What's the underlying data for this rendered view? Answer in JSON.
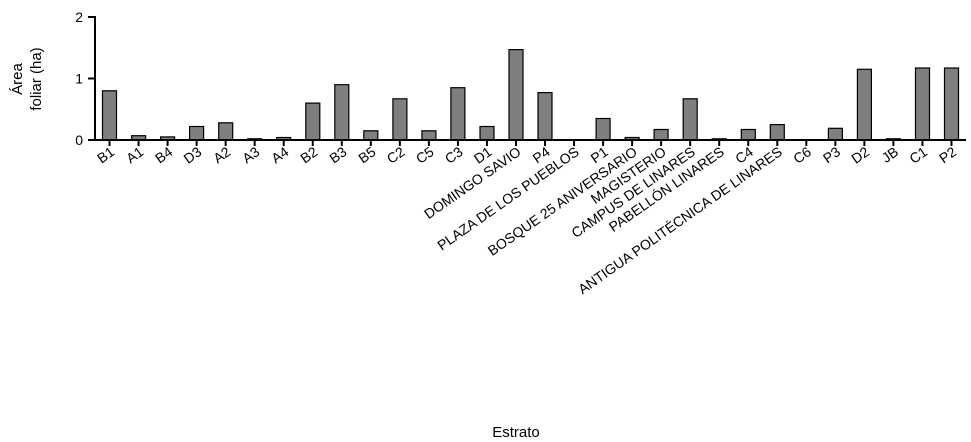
{
  "chart_data": {
    "type": "bar",
    "title": "",
    "xlabel": "Estrato",
    "ylabel_lines": [
      "Área",
      "foliar (ha)"
    ],
    "ylim": [
      0,
      2
    ],
    "yticks": [
      0,
      1,
      2
    ],
    "grid": false,
    "bar_color": "#7f7f7f",
    "categories": [
      "B1",
      "A1",
      "B4",
      "D3",
      "A2",
      "A3",
      "A4",
      "B2",
      "B3",
      "B5",
      "C2",
      "C5",
      "C3",
      "D1",
      "DOMINGO SAVIO",
      "P4",
      "PLAZA DE LOS PUEBLOS",
      "P1",
      "BOSQUE 25 ANIVERSARIO",
      "MAGISTERIO",
      "CAMPUS DE LINARES",
      "PABELLÓN LINARES",
      "C4",
      "ANTIGUA POLITÉCNICA DE LINARES",
      "C6",
      "P3",
      "D2",
      "JB",
      "C1",
      "P2"
    ],
    "values": [
      0.8,
      0.07,
      0.05,
      0.22,
      0.28,
      0.02,
      0.04,
      0.6,
      0.9,
      0.15,
      0.67,
      0.15,
      0.85,
      0.22,
      1.47,
      0.77,
      0.0,
      0.35,
      0.04,
      0.17,
      0.67,
      0.02,
      0.17,
      0.25,
      0.0,
      0.19,
      1.15,
      0.02,
      1.17,
      1.17
    ]
  }
}
